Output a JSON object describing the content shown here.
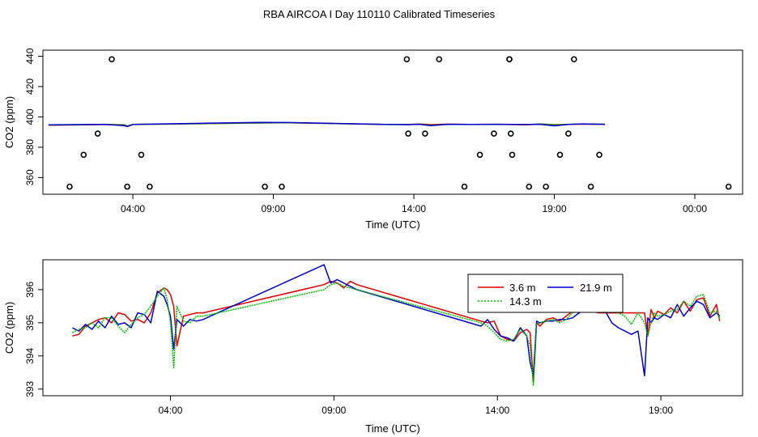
{
  "title": "RBA AIRCOA I  Day 110110  Calibrated Timeseries",
  "colors": {
    "h36": "#dd0000",
    "h143": "#00bb00",
    "h219": "#0000cc",
    "flag": "#000000"
  },
  "chart_data": [
    {
      "type": "scatter",
      "xlabel": "Time (UTC)",
      "ylabel": "CO2 (ppm)",
      "xlim": [
        -0.2,
        24.7
      ],
      "ylim": [
        349,
        444
      ],
      "x_ticks": [
        3,
        8,
        13,
        18,
        23
      ],
      "x_tick_labels": [
        "04:00",
        "09:00",
        "14:00",
        "19:00",
        "00:00"
      ],
      "y_ticks": [
        360,
        380,
        400,
        420,
        440
      ],
      "y_tick_labels": [
        "360",
        "380",
        "400",
        "420",
        "440"
      ],
      "flags": {
        "x": [
          0.75,
          1.25,
          1.75,
          2.25,
          2.8,
          3.3,
          3.6,
          7.7,
          8.3,
          12.75,
          12.8,
          13.4,
          13.9,
          14.8,
          15.35,
          15.85,
          16.4,
          16.4,
          16.45,
          16.5,
          17.1,
          17.7,
          18.2,
          18.5,
          18.7,
          19.3,
          19.6,
          24.2
        ],
        "y": [
          354,
          375,
          389,
          438,
          354,
          375,
          354,
          354,
          354,
          438,
          389,
          389,
          438,
          354,
          375,
          389,
          438,
          438,
          389,
          375,
          354,
          354,
          375,
          389,
          438,
          354,
          375,
          354
        ]
      },
      "series": [
        {
          "color_key": "h36",
          "x": [
            0.0,
            2.0,
            2.7,
            2.8,
            3.0,
            7.5,
            8.5,
            12.0,
            12.8,
            13.2,
            13.6,
            14.2,
            15.0,
            16.0,
            17.0,
            17.5,
            18.0,
            18.5,
            19.0,
            19.8
          ],
          "y": [
            394.5,
            395.0,
            394.8,
            394.0,
            395.0,
            396.0,
            396.2,
            395.0,
            395.0,
            395.3,
            394.9,
            395.2,
            395.0,
            395.1,
            394.8,
            395.3,
            394.8,
            395.0,
            395.2,
            395.1
          ]
        },
        {
          "color_key": "h143",
          "x": [
            0.0,
            2.0,
            2.7,
            2.8,
            3.0,
            7.5,
            8.5,
            12.0,
            12.8,
            13.2,
            13.6,
            14.2,
            15.0,
            16.0,
            17.0,
            17.5,
            18.0,
            18.5,
            19.0,
            19.8
          ],
          "y": [
            394.6,
            395.1,
            394.7,
            393.9,
            395.0,
            395.9,
            396.1,
            395.0,
            394.9,
            395.2,
            394.6,
            395.1,
            395.0,
            395.1,
            394.9,
            395.4,
            394.9,
            395.1,
            395.3,
            395.1
          ]
        },
        {
          "color_key": "h219",
          "x": [
            0.0,
            2.0,
            2.7,
            2.8,
            3.0,
            7.5,
            8.5,
            12.0,
            12.8,
            13.2,
            13.6,
            14.2,
            15.0,
            16.0,
            17.0,
            17.5,
            18.0,
            18.5,
            19.0,
            19.8
          ],
          "y": [
            394.8,
            395.0,
            394.2,
            393.6,
            395.0,
            396.4,
            396.3,
            395.0,
            394.9,
            395.1,
            394.2,
            395.1,
            395.0,
            395.1,
            395.0,
            395.1,
            394.1,
            395.0,
            395.4,
            395.1
          ]
        }
      ]
    },
    {
      "type": "line",
      "xlabel": "Time (UTC)",
      "ylabel": "CO2 (ppm)",
      "xlim": [
        -0.9,
        20.5
      ],
      "ylim": [
        392.8,
        396.9
      ],
      "x_ticks": [
        3,
        8,
        13,
        18
      ],
      "x_tick_labels": [
        "04:00",
        "09:00",
        "14:00",
        "19:00"
      ],
      "y_ticks": [
        393,
        394,
        395,
        396
      ],
      "y_tick_labels": [
        "393",
        "394",
        "395",
        "396"
      ],
      "legend": {
        "position": "top-right",
        "entries": [
          {
            "label": "3.6 m",
            "color_key": "h36"
          },
          {
            "label": "21.9 m",
            "color_key": "h219"
          },
          {
            "label": "14.3 m",
            "color_key": "h143"
          }
        ]
      },
      "series": [
        {
          "name": "3.6 m",
          "color_key": "h36",
          "x": [
            0.0,
            0.2,
            0.4,
            0.6,
            0.8,
            1.0,
            1.2,
            1.4,
            1.6,
            1.8,
            2.0,
            2.2,
            2.4,
            2.6,
            2.8,
            2.9,
            3.0,
            3.1,
            3.2,
            3.4,
            3.6,
            3.8,
            4.0,
            7.7,
            7.9,
            8.1,
            8.3,
            8.5,
            8.7,
            12.5,
            12.7,
            12.9,
            13.1,
            13.3,
            13.5,
            13.7,
            13.9,
            14.0,
            14.1,
            14.2,
            14.3,
            14.5,
            14.7,
            14.9,
            15.1,
            15.3,
            15.5,
            15.7,
            15.9,
            16.1,
            16.3,
            16.5,
            16.7,
            16.9,
            17.1,
            17.3,
            17.5,
            17.6,
            17.7,
            17.8,
            17.9,
            18.1,
            18.3,
            18.5,
            18.7,
            18.9,
            19.1,
            19.3,
            19.5,
            19.7,
            19.8
          ],
          "y": [
            394.6,
            394.65,
            394.9,
            395.0,
            395.1,
            395.15,
            395.0,
            395.3,
            395.25,
            395.05,
            395.1,
            395.0,
            395.3,
            395.9,
            396.05,
            396.0,
            395.85,
            395.5,
            394.3,
            395.2,
            395.25,
            395.3,
            395.3,
            396.15,
            396.25,
            396.2,
            396.05,
            396.25,
            396.15,
            395.05,
            395.0,
            395.05,
            394.6,
            394.5,
            394.45,
            394.7,
            394.8,
            394.7,
            393.2,
            395.0,
            394.9,
            395.1,
            395.15,
            395.05,
            395.2,
            395.35,
            395.4,
            395.5,
            395.35,
            395.3,
            395.3,
            395.3,
            395.3,
            395.3,
            395.3,
            395.3,
            395.3,
            394.6,
            395.4,
            395.15,
            395.35,
            395.25,
            395.45,
            395.3,
            395.65,
            395.35,
            395.7,
            395.75,
            395.2,
            395.55,
            395.05
          ]
        },
        {
          "name": "21.9 m",
          "color_key": "h219",
          "x": [
            0.0,
            0.2,
            0.4,
            0.6,
            0.8,
            1.0,
            1.2,
            1.4,
            1.6,
            1.8,
            2.0,
            2.2,
            2.4,
            2.6,
            2.8,
            2.9,
            3.0,
            3.1,
            3.2,
            3.4,
            3.6,
            3.8,
            4.0,
            7.7,
            7.9,
            8.1,
            8.3,
            8.5,
            8.7,
            12.5,
            12.7,
            12.9,
            13.1,
            13.3,
            13.5,
            13.7,
            13.9,
            14.0,
            14.1,
            14.2,
            14.3,
            14.5,
            14.7,
            14.9,
            15.1,
            15.3,
            15.5,
            15.7,
            15.9,
            16.1,
            16.3,
            16.5,
            16.7,
            16.9,
            17.1,
            17.3,
            17.5,
            17.6,
            17.7,
            17.8,
            17.9,
            18.1,
            18.3,
            18.5,
            18.7,
            18.9,
            19.1,
            19.3,
            19.5,
            19.7,
            19.8
          ],
          "y": [
            394.85,
            394.75,
            394.95,
            394.8,
            395.05,
            394.85,
            395.2,
            394.95,
            395.0,
            394.85,
            395.3,
            395.25,
            395.0,
            395.95,
            395.8,
            395.55,
            395.2,
            394.2,
            395.1,
            394.9,
            395.1,
            395.05,
            395.1,
            396.75,
            396.2,
            396.3,
            396.2,
            396.1,
            396.0,
            394.9,
            395.1,
            394.8,
            394.6,
            394.55,
            394.45,
            394.85,
            394.6,
            393.8,
            393.4,
            395.05,
            395.0,
            395.05,
            395.05,
            395.1,
            395.1,
            395.15,
            395.3,
            395.4,
            395.55,
            395.5,
            395.35,
            395.0,
            394.85,
            394.75,
            394.65,
            394.75,
            393.4,
            395.15,
            395.0,
            395.15,
            395.1,
            395.25,
            395.15,
            395.55,
            395.2,
            395.45,
            395.65,
            395.55,
            395.15,
            395.3,
            395.2
          ]
        },
        {
          "name": "14.3 m",
          "color_key": "h143",
          "x": [
            0.0,
            0.2,
            0.4,
            0.6,
            0.8,
            1.0,
            1.2,
            1.4,
            1.6,
            1.8,
            2.0,
            2.2,
            2.4,
            2.6,
            2.8,
            2.9,
            3.0,
            3.1,
            3.2,
            3.4,
            3.6,
            3.8,
            4.0,
            7.7,
            7.9,
            8.1,
            8.3,
            8.5,
            8.7,
            12.5,
            12.7,
            12.9,
            13.1,
            13.3,
            13.5,
            13.7,
            13.9,
            14.0,
            14.1,
            14.2,
            14.3,
            14.5,
            14.7,
            14.9,
            15.1,
            15.3,
            15.5,
            15.7,
            15.9,
            16.1,
            16.3,
            16.5,
            16.7,
            16.9,
            17.1,
            17.3,
            17.5,
            17.6,
            17.7,
            17.8,
            17.9,
            18.1,
            18.3,
            18.5,
            18.7,
            18.9,
            19.1,
            19.3,
            19.5,
            19.7,
            19.8
          ],
          "y": [
            394.7,
            394.8,
            394.85,
            395.0,
            394.85,
            395.15,
            395.15,
            394.9,
            394.7,
            394.95,
            395.15,
            395.25,
            395.5,
            395.8,
            396.05,
            395.7,
            395.0,
            393.65,
            395.5,
            395.05,
            395.0,
            395.2,
            395.2,
            396.0,
            396.15,
            396.2,
            396.1,
            396.05,
            396.0,
            395.0,
            394.9,
            394.7,
            394.5,
            394.45,
            394.5,
            394.8,
            394.6,
            394.3,
            393.1,
            394.95,
            395.0,
            395.05,
            395.1,
            395.0,
            395.1,
            395.3,
            395.4,
            395.5,
            395.45,
            395.5,
            395.45,
            395.4,
            395.3,
            395.2,
            394.95,
            395.3,
            395.0,
            394.6,
            395.0,
            395.3,
            395.2,
            395.25,
            395.35,
            395.4,
            395.65,
            395.5,
            395.8,
            395.85,
            395.3,
            395.35,
            395.1
          ]
        }
      ]
    }
  ]
}
